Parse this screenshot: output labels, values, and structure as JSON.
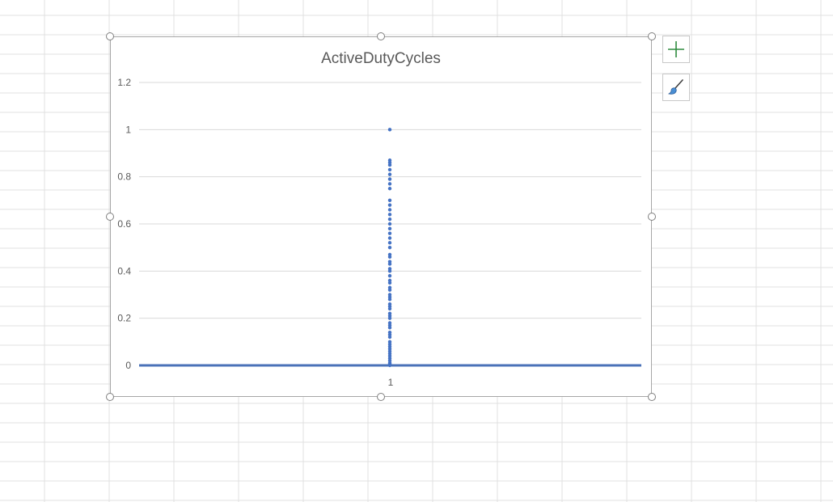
{
  "chart_data": {
    "type": "scatter",
    "title": "ActiveDutyCycles",
    "xlabel": "",
    "ylabel": "",
    "x_ticks": [
      "1"
    ],
    "ylim": [
      0,
      1.2
    ],
    "y_ticks": [
      "0",
      "0.2",
      "0.4",
      "0.6",
      "0.8",
      "1",
      "1.2"
    ],
    "grid": true,
    "marker_color": "#4472c4",
    "series": [
      {
        "x": 1,
        "values": [
          1.0,
          0.87,
          0.86,
          0.85,
          0.83,
          0.81,
          0.79,
          0.77,
          0.75,
          0.7,
          0.68,
          0.66,
          0.64,
          0.62,
          0.6,
          0.58,
          0.56,
          0.54,
          0.52,
          0.5,
          0.47,
          0.46,
          0.44,
          0.43,
          0.41,
          0.4,
          0.38,
          0.36,
          0.35,
          0.33,
          0.32,
          0.3,
          0.29,
          0.28,
          0.26,
          0.25,
          0.24,
          0.22,
          0.21,
          0.2,
          0.18,
          0.17,
          0.16,
          0.14,
          0.13,
          0.12,
          0.1,
          0.09,
          0.08,
          0.07,
          0.06,
          0.05,
          0.04,
          0.03,
          0.02,
          0.01,
          0.005,
          0.0
        ]
      }
    ]
  },
  "side_buttons": {
    "chart_elements_icon": "plus-icon",
    "chart_styles_icon": "paintbrush-icon"
  }
}
